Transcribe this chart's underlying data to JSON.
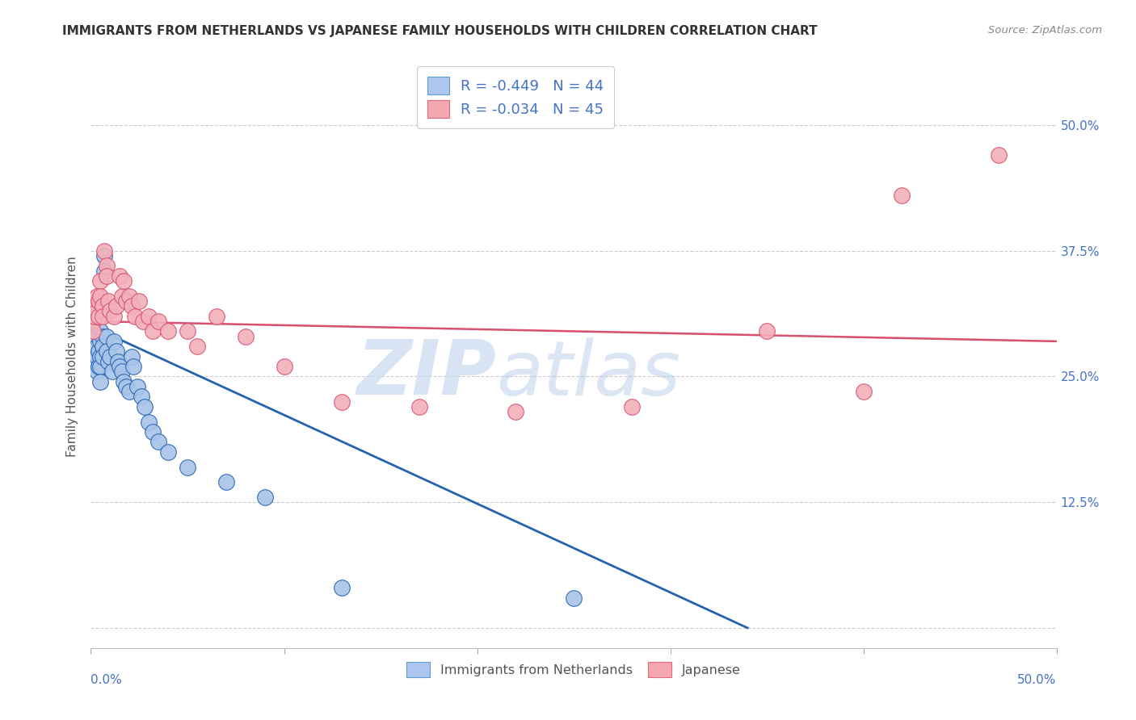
{
  "title": "IMMIGRANTS FROM NETHERLANDS VS JAPANESE FAMILY HOUSEHOLDS WITH CHILDREN CORRELATION CHART",
  "source": "Source: ZipAtlas.com",
  "ylabel": "Family Households with Children",
  "ytick_values": [
    0.0,
    0.125,
    0.25,
    0.375,
    0.5
  ],
  "ytick_labels": [
    "",
    "12.5%",
    "25.0%",
    "37.5%",
    "50.0%"
  ],
  "xlim": [
    0.0,
    0.5
  ],
  "ylim": [
    -0.02,
    0.56
  ],
  "legend_entries": [
    {
      "label": "R = -0.449   N = 44",
      "facecolor": "#aec6ef",
      "edgecolor": "#5b9bd5"
    },
    {
      "label": "R = -0.034   N = 45",
      "facecolor": "#f4a7b0",
      "edgecolor": "#e8697a"
    }
  ],
  "legend_label_1": "Immigrants from Netherlands",
  "legend_label_2": "Japanese",
  "blue_scatter_x": [
    0.001,
    0.002,
    0.003,
    0.003,
    0.003,
    0.004,
    0.004,
    0.005,
    0.005,
    0.005,
    0.005,
    0.005,
    0.006,
    0.006,
    0.006,
    0.007,
    0.007,
    0.008,
    0.008,
    0.009,
    0.01,
    0.011,
    0.012,
    0.013,
    0.014,
    0.015,
    0.016,
    0.017,
    0.018,
    0.02,
    0.021,
    0.022,
    0.024,
    0.026,
    0.028,
    0.03,
    0.032,
    0.035,
    0.04,
    0.05,
    0.07,
    0.09,
    0.13,
    0.25
  ],
  "blue_scatter_y": [
    0.29,
    0.265,
    0.28,
    0.27,
    0.255,
    0.275,
    0.26,
    0.295,
    0.285,
    0.27,
    0.26,
    0.245,
    0.29,
    0.28,
    0.27,
    0.37,
    0.355,
    0.29,
    0.275,
    0.265,
    0.27,
    0.255,
    0.285,
    0.275,
    0.265,
    0.26,
    0.255,
    0.245,
    0.24,
    0.235,
    0.27,
    0.26,
    0.24,
    0.23,
    0.22,
    0.205,
    0.195,
    0.185,
    0.175,
    0.16,
    0.145,
    0.13,
    0.04,
    0.03
  ],
  "pink_scatter_x": [
    0.001,
    0.001,
    0.002,
    0.002,
    0.003,
    0.003,
    0.004,
    0.004,
    0.005,
    0.005,
    0.006,
    0.006,
    0.007,
    0.008,
    0.008,
    0.009,
    0.01,
    0.012,
    0.013,
    0.015,
    0.016,
    0.017,
    0.018,
    0.02,
    0.021,
    0.023,
    0.025,
    0.027,
    0.03,
    0.032,
    0.035,
    0.04,
    0.05,
    0.055,
    0.065,
    0.08,
    0.1,
    0.13,
    0.17,
    0.22,
    0.28,
    0.35,
    0.4,
    0.42,
    0.47
  ],
  "pink_scatter_y": [
    0.305,
    0.295,
    0.32,
    0.31,
    0.33,
    0.315,
    0.325,
    0.31,
    0.345,
    0.33,
    0.32,
    0.31,
    0.375,
    0.36,
    0.35,
    0.325,
    0.315,
    0.31,
    0.32,
    0.35,
    0.33,
    0.345,
    0.325,
    0.33,
    0.32,
    0.31,
    0.325,
    0.305,
    0.31,
    0.295,
    0.305,
    0.295,
    0.295,
    0.28,
    0.31,
    0.29,
    0.26,
    0.225,
    0.22,
    0.215,
    0.22,
    0.295,
    0.235,
    0.43,
    0.47
  ],
  "blue_line_x": [
    0.0,
    0.34
  ],
  "blue_line_y": [
    0.3,
    0.0
  ],
  "pink_line_x": [
    0.0,
    0.5
  ],
  "pink_line_y": [
    0.305,
    0.285
  ],
  "blue_color": "#2563b0",
  "blue_fill": "#a8c4e8",
  "pink_color": "#d94f6e",
  "pink_fill": "#f2b0ba",
  "watermark_zip": "ZIP",
  "watermark_atlas": "atlas",
  "background_color": "#ffffff",
  "grid_color": "#cccccc",
  "title_color": "#333333",
  "right_axis_color": "#4472c4"
}
